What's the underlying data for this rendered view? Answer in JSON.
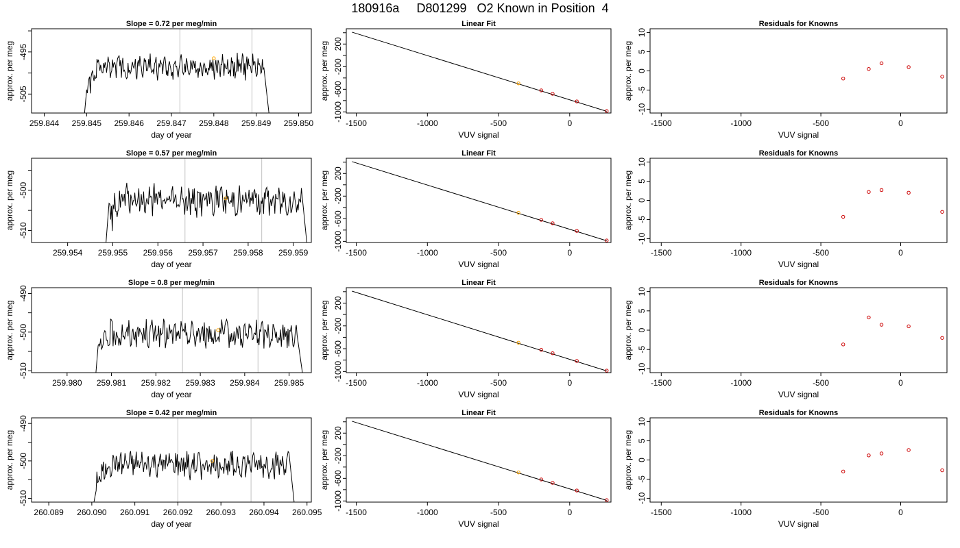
{
  "title": "180916a     D801299   O2 Known in Position  4",
  "rows": [
    {
      "time": {
        "title": "Slope =  0.72  per meg/min",
        "xlabel": "day of year",
        "ylabel": "approx. per meg",
        "xlim": [
          259.8437,
          259.8503
        ],
        "ylim": [
          -509.5,
          -489.5
        ],
        "xticks": [
          259.844,
          259.845,
          259.846,
          259.847,
          259.848,
          259.849,
          259.85
        ],
        "xtick_labels": [
          "259.844",
          "259.845",
          "259.846",
          "259.847",
          "259.848",
          "259.849",
          "259.850"
        ],
        "yticks": [
          -505,
          -500,
          -495,
          -490
        ],
        "ytick_labels": [
          "-505",
          "",
          "-495",
          ""
        ],
        "vlines": [
          259.8472,
          259.8489
        ],
        "trace_start": 259.845,
        "trace_end": 259.8493,
        "trace_level": -498.5,
        "trace_amp": 2.4,
        "trace_floor": -509.5,
        "marker": {
          "x": 259.848,
          "y": -496.5
        },
        "trace_color": "#000000",
        "vline_color": "#cccccc",
        "marker_color": "#ffa500"
      },
      "fit": {
        "title": "Linear Fit",
        "xlabel": "VUV signal",
        "ylabel": "approx. per meg",
        "xlim": [
          -1570,
          290
        ],
        "ylim": [
          -1020,
          470
        ],
        "xticks": [
          -1500,
          -1000,
          -500,
          0
        ],
        "xtick_labels": [
          "-1500",
          "-1000",
          "-500",
          "0"
        ],
        "yticks": [
          -1000,
          -800,
          -600,
          -400,
          -200,
          0,
          200,
          400
        ],
        "ytick_labels": [
          "-1000",
          "",
          "-600",
          "",
          "-200",
          "",
          "200",
          ""
        ],
        "line": {
          "x0": -1530,
          "y0": 410,
          "x1": 260,
          "y1": -990
        },
        "points": [
          {
            "x": -360,
            "y": -495,
            "color": "#ffa500"
          },
          {
            "x": -200,
            "y": -620,
            "color": "#cc0000"
          },
          {
            "x": -120,
            "y": -680,
            "color": "#cc0000"
          },
          {
            "x": 50,
            "y": -815,
            "color": "#cc0000"
          },
          {
            "x": 260,
            "y": -985,
            "color": "#cc0000"
          }
        ]
      },
      "resid": {
        "title": "Residuals for Knowns",
        "xlabel": "VUV signal",
        "ylabel": "approx. per meg",
        "xlim": [
          -1570,
          290
        ],
        "ylim": [
          -11,
          11
        ],
        "xticks": [
          -1500,
          -1000,
          -500,
          0
        ],
        "xtick_labels": [
          "-1500",
          "-1000",
          "-500",
          "0"
        ],
        "yticks": [
          -10,
          -5,
          0,
          5,
          10
        ],
        "ytick_labels": [
          "-10",
          "-5",
          "0",
          "5",
          "10"
        ],
        "points": [
          {
            "x": -360,
            "y": -2.0,
            "color": "#cc0000"
          },
          {
            "x": -200,
            "y": 0.5,
            "color": "#cc0000"
          },
          {
            "x": -120,
            "y": 2.0,
            "color": "#cc0000"
          },
          {
            "x": 50,
            "y": 1.0,
            "color": "#cc0000"
          },
          {
            "x": 260,
            "y": -1.5,
            "color": "#cc0000"
          }
        ]
      }
    },
    {
      "time": {
        "title": "Slope =  0.57  per meg/min",
        "xlabel": "day of year",
        "ylabel": "approx. per meg",
        "xlim": [
          259.9532,
          259.9594
        ],
        "ylim": [
          -513,
          -492
        ],
        "xticks": [
          259.954,
          259.955,
          259.956,
          259.957,
          259.958,
          259.959
        ],
        "xtick_labels": [
          "259.954",
          "259.955",
          "259.956",
          "259.957",
          "259.958",
          "259.959"
        ],
        "yticks": [
          -510,
          -505,
          -500,
          -495
        ],
        "ytick_labels": [
          "-510",
          "",
          "-500",
          ""
        ],
        "vlines": [
          259.9566,
          259.9583
        ],
        "trace_start": 259.9549,
        "trace_end": 259.9593,
        "trace_level": -502.5,
        "trace_amp": 3.2,
        "trace_floor": -513,
        "marker": {
          "x": 259.9575,
          "y": -502.0
        },
        "trace_color": "#000000",
        "vline_color": "#cccccc",
        "marker_color": "#ffa500"
      },
      "fit": {
        "title": "Linear Fit",
        "xlabel": "VUV signal",
        "ylabel": "approx. per meg",
        "xlim": [
          -1570,
          290
        ],
        "ylim": [
          -1020,
          470
        ],
        "xticks": [
          -1500,
          -1000,
          -500,
          0
        ],
        "xtick_labels": [
          "-1500",
          "-1000",
          "-500",
          "0"
        ],
        "yticks": [
          -1000,
          -800,
          -600,
          -400,
          -200,
          0,
          200,
          400
        ],
        "ytick_labels": [
          "-1000",
          "",
          "-600",
          "",
          "-200",
          "",
          "200",
          ""
        ],
        "line": {
          "x0": -1530,
          "y0": 410,
          "x1": 260,
          "y1": -990
        },
        "points": [
          {
            "x": -360,
            "y": -495,
            "color": "#ffa500"
          },
          {
            "x": -200,
            "y": -620,
            "color": "#cc0000"
          },
          {
            "x": -120,
            "y": -680,
            "color": "#cc0000"
          },
          {
            "x": 50,
            "y": -815,
            "color": "#cc0000"
          },
          {
            "x": 260,
            "y": -985,
            "color": "#cc0000"
          }
        ]
      },
      "resid": {
        "title": "Residuals for Knowns",
        "xlabel": "VUV signal",
        "ylabel": "approx. per meg",
        "xlim": [
          -1570,
          290
        ],
        "ylim": [
          -11,
          11
        ],
        "xticks": [
          -1500,
          -1000,
          -500,
          0
        ],
        "xtick_labels": [
          "-1500",
          "-1000",
          "-500",
          "0"
        ],
        "yticks": [
          -10,
          -5,
          0,
          5,
          10
        ],
        "ytick_labels": [
          "-10",
          "-5",
          "0",
          "5",
          "10"
        ],
        "points": [
          {
            "x": -360,
            "y": -4.3,
            "color": "#cc0000"
          },
          {
            "x": -200,
            "y": 2.2,
            "color": "#cc0000"
          },
          {
            "x": -120,
            "y": 2.7,
            "color": "#cc0000"
          },
          {
            "x": 50,
            "y": 2.0,
            "color": "#cc0000"
          },
          {
            "x": 260,
            "y": -3.0,
            "color": "#cc0000"
          }
        ]
      }
    },
    {
      "time": {
        "title": "Slope =  0.8  per meg/min",
        "xlabel": "day of year",
        "ylabel": "approx. per meg",
        "xlim": [
          259.9792,
          259.9855
        ],
        "ylim": [
          -510.5,
          -488.5
        ],
        "xticks": [
          259.98,
          259.981,
          259.982,
          259.983,
          259.984,
          259.985
        ],
        "xtick_labels": [
          "259.980",
          "259.981",
          "259.982",
          "259.983",
          "259.984",
          "259.985"
        ],
        "yticks": [
          -510,
          -505,
          -500,
          -495,
          -490
        ],
        "ytick_labels": [
          "-510",
          "",
          "-500",
          "",
          "-490"
        ],
        "vlines": [
          259.9826,
          259.9843
        ],
        "trace_start": 259.9807,
        "trace_end": 259.9853,
        "trace_level": -500.5,
        "trace_amp": 3.0,
        "trace_floor": -510.5,
        "marker": {
          "x": 259.9834,
          "y": -499.5
        },
        "trace_color": "#000000",
        "vline_color": "#cccccc",
        "marker_color": "#ffa500"
      },
      "fit": {
        "title": "Linear Fit",
        "xlabel": "VUV signal",
        "ylabel": "approx. per meg",
        "xlim": [
          -1570,
          290
        ],
        "ylim": [
          -1020,
          470
        ],
        "xticks": [
          -1500,
          -1000,
          -500,
          0
        ],
        "xtick_labels": [
          "-1500",
          "-1000",
          "-500",
          "0"
        ],
        "yticks": [
          -1000,
          -800,
          -600,
          -400,
          -200,
          0,
          200,
          400
        ],
        "ytick_labels": [
          "-1000",
          "",
          "-600",
          "",
          "-200",
          "",
          "200",
          ""
        ],
        "line": {
          "x0": -1530,
          "y0": 410,
          "x1": 260,
          "y1": -990
        },
        "points": [
          {
            "x": -360,
            "y": -495,
            "color": "#ffa500"
          },
          {
            "x": -200,
            "y": -620,
            "color": "#cc0000"
          },
          {
            "x": -120,
            "y": -680,
            "color": "#cc0000"
          },
          {
            "x": 50,
            "y": -815,
            "color": "#cc0000"
          },
          {
            "x": 260,
            "y": -985,
            "color": "#cc0000"
          }
        ]
      },
      "resid": {
        "title": "Residuals for Knowns",
        "xlabel": "VUV signal",
        "ylabel": "approx. per meg",
        "xlim": [
          -1570,
          290
        ],
        "ylim": [
          -11,
          11
        ],
        "xticks": [
          -1500,
          -1000,
          -500,
          0
        ],
        "xtick_labels": [
          "-1500",
          "-1000",
          "-500",
          "0"
        ],
        "yticks": [
          -10,
          -5,
          0,
          5,
          10
        ],
        "ytick_labels": [
          "-10",
          "-5",
          "0",
          "5",
          "10"
        ],
        "points": [
          {
            "x": -360,
            "y": -3.7,
            "color": "#cc0000"
          },
          {
            "x": -200,
            "y": 3.3,
            "color": "#cc0000"
          },
          {
            "x": -120,
            "y": 1.4,
            "color": "#cc0000"
          },
          {
            "x": 50,
            "y": 1.0,
            "color": "#cc0000"
          },
          {
            "x": 260,
            "y": -2.0,
            "color": "#cc0000"
          }
        ]
      }
    },
    {
      "time": {
        "title": "Slope =  0.42  per meg/min",
        "xlabel": "day of year",
        "ylabel": "approx. per meg",
        "xlim": [
          260.0886,
          260.0951
        ],
        "ylim": [
          -511,
          -488.5
        ],
        "xticks": [
          260.089,
          260.09,
          260.091,
          260.092,
          260.093,
          260.094,
          260.095
        ],
        "xtick_labels": [
          "260.089",
          "260.090",
          "260.091",
          "260.092",
          "260.093",
          "260.094",
          "260.095"
        ],
        "yticks": [
          -510,
          -505,
          -500,
          -495,
          -490
        ],
        "ytick_labels": [
          "-510",
          "",
          "-500",
          "",
          "-490"
        ],
        "vlines": [
          260.092,
          260.0937
        ],
        "trace_start": 260.0901,
        "trace_end": 260.0947,
        "trace_level": -501.0,
        "trace_amp": 3.0,
        "trace_floor": -511,
        "marker": {
          "x": 260.0928,
          "y": -500.0
        },
        "trace_color": "#000000",
        "vline_color": "#cccccc",
        "marker_color": "#ffa500"
      },
      "fit": {
        "title": "Linear Fit",
        "xlabel": "VUV signal",
        "ylabel": "approx. per meg",
        "xlim": [
          -1570,
          290
        ],
        "ylim": [
          -1020,
          470
        ],
        "xticks": [
          -1500,
          -1000,
          -500,
          0
        ],
        "xtick_labels": [
          "-1500",
          "-1000",
          "-500",
          "0"
        ],
        "yticks": [
          -1000,
          -800,
          -600,
          -400,
          -200,
          0,
          200,
          400
        ],
        "ytick_labels": [
          "-1000",
          "",
          "-600",
          "",
          "-200",
          "",
          "200",
          ""
        ],
        "line": {
          "x0": -1530,
          "y0": 410,
          "x1": 260,
          "y1": -990
        },
        "points": [
          {
            "x": -360,
            "y": -495,
            "color": "#ffa500"
          },
          {
            "x": -200,
            "y": -620,
            "color": "#cc0000"
          },
          {
            "x": -120,
            "y": -680,
            "color": "#cc0000"
          },
          {
            "x": 50,
            "y": -815,
            "color": "#cc0000"
          },
          {
            "x": 260,
            "y": -985,
            "color": "#cc0000"
          }
        ]
      },
      "resid": {
        "title": "Residuals for Knowns",
        "xlabel": "VUV signal",
        "ylabel": "approx. per meg",
        "xlim": [
          -1570,
          290
        ],
        "ylim": [
          -11,
          11
        ],
        "xticks": [
          -1500,
          -1000,
          -500,
          0
        ],
        "xtick_labels": [
          "-1500",
          "-1000",
          "-500",
          "0"
        ],
        "yticks": [
          -10,
          -5,
          0,
          5,
          10
        ],
        "ytick_labels": [
          "-10",
          "-5",
          "0",
          "5",
          "10"
        ],
        "points": [
          {
            "x": -360,
            "y": -3.0,
            "color": "#cc0000"
          },
          {
            "x": -200,
            "y": 1.2,
            "color": "#cc0000"
          },
          {
            "x": -120,
            "y": 1.7,
            "color": "#cc0000"
          },
          {
            "x": 50,
            "y": 2.6,
            "color": "#cc0000"
          },
          {
            "x": 260,
            "y": -2.7,
            "color": "#cc0000"
          }
        ]
      }
    }
  ]
}
